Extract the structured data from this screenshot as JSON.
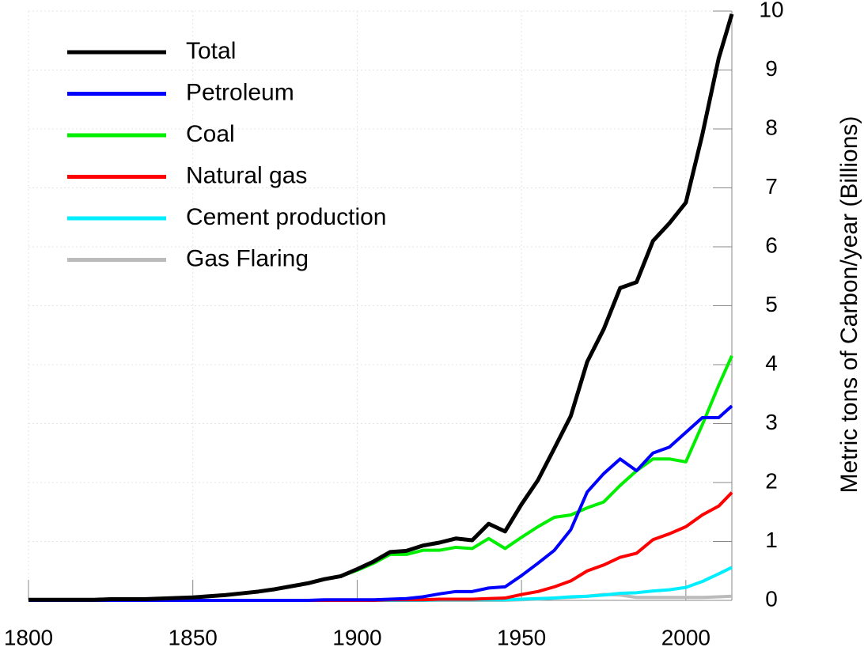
{
  "chart_data": {
    "type": "line",
    "y_label": "Metric tons of Carbon/year (Billions)",
    "x": [
      1800,
      1805,
      1810,
      1815,
      1820,
      1825,
      1830,
      1835,
      1840,
      1845,
      1850,
      1855,
      1860,
      1865,
      1870,
      1875,
      1880,
      1885,
      1890,
      1895,
      1900,
      1905,
      1910,
      1915,
      1920,
      1925,
      1930,
      1935,
      1940,
      1945,
      1950,
      1955,
      1960,
      1965,
      1970,
      1975,
      1980,
      1985,
      1990,
      1995,
      2000,
      2005,
      2010,
      2014
    ],
    "xlim": [
      1800,
      2014
    ],
    "xticks": [
      1800,
      1850,
      1900,
      1950,
      2000
    ],
    "ylim": [
      0,
      10
    ],
    "yticks": [
      0,
      1,
      2,
      3,
      4,
      5,
      6,
      7,
      8,
      9,
      10
    ],
    "grid": true,
    "legend": "upper left",
    "series": [
      {
        "name": "Total",
        "color": "#000000",
        "values": [
          0.01,
          0.01,
          0.01,
          0.01,
          0.01,
          0.02,
          0.02,
          0.02,
          0.03,
          0.04,
          0.05,
          0.07,
          0.09,
          0.12,
          0.15,
          0.19,
          0.24,
          0.29,
          0.36,
          0.41,
          0.53,
          0.66,
          0.82,
          0.84,
          0.93,
          0.98,
          1.05,
          1.02,
          1.3,
          1.17,
          1.63,
          2.04,
          2.58,
          3.13,
          4.05,
          4.6,
          5.3,
          5.4,
          6.1,
          6.4,
          6.75,
          7.9,
          9.2,
          9.95
        ]
      },
      {
        "name": "Petroleum",
        "color": "#0000ff",
        "values": [
          0,
          0,
          0,
          0,
          0,
          0,
          0,
          0,
          0,
          0,
          0,
          0,
          0,
          0,
          0,
          0,
          0,
          0,
          0.01,
          0.01,
          0.01,
          0.01,
          0.02,
          0.03,
          0.06,
          0.11,
          0.15,
          0.15,
          0.21,
          0.23,
          0.42,
          0.63,
          0.85,
          1.2,
          1.84,
          2.15,
          2.4,
          2.2,
          2.5,
          2.6,
          2.85,
          3.1,
          3.1,
          3.3
        ]
      },
      {
        "name": "Coal",
        "color": "#00ee00",
        "values": [
          0.01,
          0.01,
          0.01,
          0.01,
          0.01,
          0.02,
          0.02,
          0.02,
          0.03,
          0.04,
          0.05,
          0.07,
          0.09,
          0.12,
          0.15,
          0.19,
          0.24,
          0.29,
          0.36,
          0.41,
          0.51,
          0.63,
          0.78,
          0.78,
          0.85,
          0.85,
          0.9,
          0.88,
          1.05,
          0.88,
          1.07,
          1.25,
          1.41,
          1.45,
          1.57,
          1.67,
          1.95,
          2.2,
          2.4,
          2.4,
          2.35,
          2.98,
          3.65,
          4.15
        ]
      },
      {
        "name": "Natural gas",
        "color": "#ff0000",
        "values": [
          0,
          0,
          0,
          0,
          0,
          0,
          0,
          0,
          0,
          0,
          0,
          0,
          0,
          0,
          0,
          0,
          0,
          0,
          0,
          0,
          0,
          0,
          0.01,
          0.01,
          0.01,
          0.02,
          0.02,
          0.02,
          0.03,
          0.04,
          0.1,
          0.15,
          0.23,
          0.33,
          0.5,
          0.6,
          0.73,
          0.8,
          1.03,
          1.13,
          1.25,
          1.45,
          1.6,
          1.83
        ]
      },
      {
        "name": "Cement production",
        "color": "#00eeff",
        "values": [
          0,
          0,
          0,
          0,
          0,
          0,
          0,
          0,
          0,
          0,
          0,
          0,
          0,
          0,
          0,
          0,
          0,
          0,
          0,
          0,
          0,
          0,
          0,
          0,
          0,
          0.01,
          0.01,
          0.01,
          0.01,
          0.01,
          0.02,
          0.03,
          0.04,
          0.06,
          0.07,
          0.09,
          0.12,
          0.13,
          0.16,
          0.18,
          0.22,
          0.32,
          0.45,
          0.56
        ]
      },
      {
        "name": "Gas Flaring",
        "color": "#bbbbbb",
        "values": [
          0,
          0,
          0,
          0,
          0,
          0,
          0,
          0,
          0,
          0,
          0,
          0,
          0,
          0,
          0,
          0,
          0,
          0,
          0,
          0,
          0,
          0,
          0,
          0,
          0,
          0,
          0,
          0,
          0,
          0,
          0.01,
          0.02,
          0.04,
          0.05,
          0.07,
          0.1,
          0.09,
          0.05,
          0.05,
          0.05,
          0.05,
          0.05,
          0.06,
          0.07
        ]
      }
    ]
  }
}
